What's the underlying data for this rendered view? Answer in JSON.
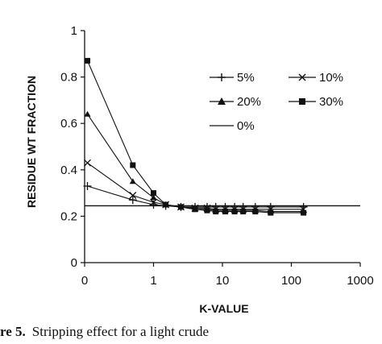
{
  "chart_data": {
    "type": "line",
    "xscale": "log",
    "xlim": [
      0.1,
      1000
    ],
    "ylim": [
      0,
      1
    ],
    "xticks": [
      {
        "value": 0.1,
        "label": "0"
      },
      {
        "value": 1,
        "label": "1"
      },
      {
        "value": 10,
        "label": "10"
      },
      {
        "value": 100,
        "label": "100"
      },
      {
        "value": 1000,
        "label": "1000"
      }
    ],
    "yticks": [
      {
        "value": 0,
        "label": "0"
      },
      {
        "value": 0.2,
        "label": "0.2"
      },
      {
        "value": 0.4,
        "label": "0.4"
      },
      {
        "value": 0.6,
        "label": "0.6"
      },
      {
        "value": 0.8,
        "label": "0.8"
      },
      {
        "value": 1,
        "label": "1"
      }
    ],
    "xlabel": "K-VALUE",
    "ylabel": "RESIDUE WT FRACTION",
    "grid": false,
    "legend_position": "top-right",
    "series": [
      {
        "name": "5%",
        "marker": "plus",
        "x": [
          0.11,
          0.5,
          1,
          1.5,
          2.5,
          4,
          6,
          8,
          11,
          15,
          20,
          30,
          50,
          150
        ],
        "y": [
          0.33,
          0.27,
          0.25,
          0.245,
          0.24,
          0.24,
          0.24,
          0.24,
          0.24,
          0.24,
          0.24,
          0.24,
          0.24,
          0.24
        ]
      },
      {
        "name": "10%",
        "marker": "x",
        "x": [
          0.11,
          0.5,
          1,
          1.5,
          2.5,
          4,
          6,
          8,
          11,
          15,
          20,
          30,
          50,
          150
        ],
        "y": [
          0.43,
          0.29,
          0.26,
          0.25,
          0.24,
          0.235,
          0.235,
          0.23,
          0.23,
          0.23,
          0.23,
          0.23,
          0.23,
          0.23
        ]
      },
      {
        "name": "20%",
        "marker": "triangle",
        "x": [
          0.11,
          0.5,
          1,
          1.5,
          2.5,
          4,
          6,
          8,
          11,
          15,
          20,
          30,
          50,
          150
        ],
        "y": [
          0.64,
          0.35,
          0.28,
          0.25,
          0.24,
          0.23,
          0.23,
          0.225,
          0.225,
          0.225,
          0.225,
          0.225,
          0.22,
          0.22
        ]
      },
      {
        "name": "30%",
        "marker": "square",
        "x": [
          0.11,
          0.5,
          1,
          1.5,
          2.5,
          4,
          6,
          8,
          11,
          15,
          20,
          30,
          50,
          150
        ],
        "y": [
          0.87,
          0.42,
          0.3,
          0.25,
          0.24,
          0.23,
          0.225,
          0.22,
          0.22,
          0.22,
          0.22,
          0.22,
          0.215,
          0.215
        ]
      },
      {
        "name": "0%",
        "marker": "none",
        "x": [
          0.1,
          1000
        ],
        "y": [
          0.245,
          0.245
        ]
      }
    ]
  },
  "caption": {
    "label": "re 5.",
    "text": "Stripping effect for a light crude"
  }
}
